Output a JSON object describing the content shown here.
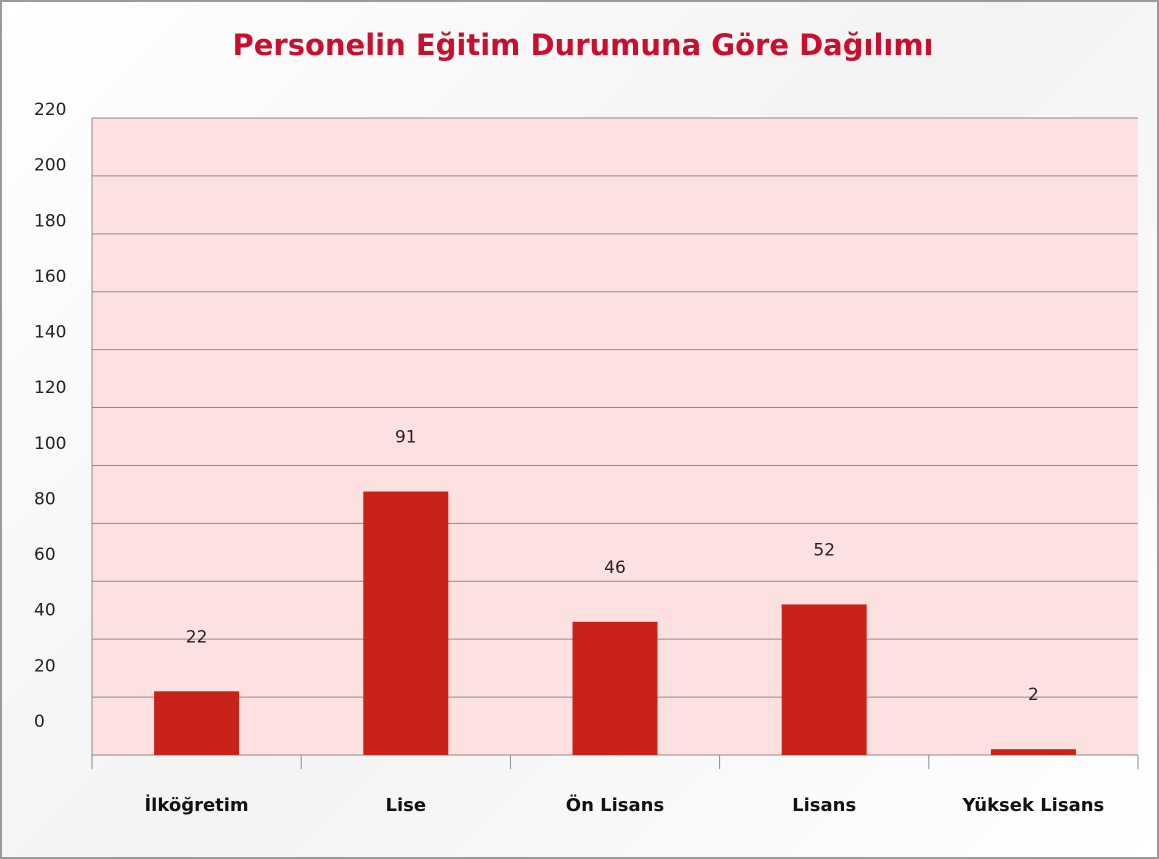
{
  "chart_data": {
    "type": "bar",
    "title": "Personelin Eğitim Durumuna Göre Dağılımı",
    "categories": [
      "İlköğretim",
      "Lise",
      "Ön Lisans",
      "Lisans",
      "Yüksek Lisans"
    ],
    "values": [
      22,
      91,
      46,
      52,
      2
    ],
    "color": "#c8221a",
    "ylim": [
      0,
      220
    ],
    "yticks": [
      0,
      20,
      40,
      60,
      80,
      100,
      120,
      140,
      160,
      180,
      200,
      220
    ],
    "grid": true
  }
}
